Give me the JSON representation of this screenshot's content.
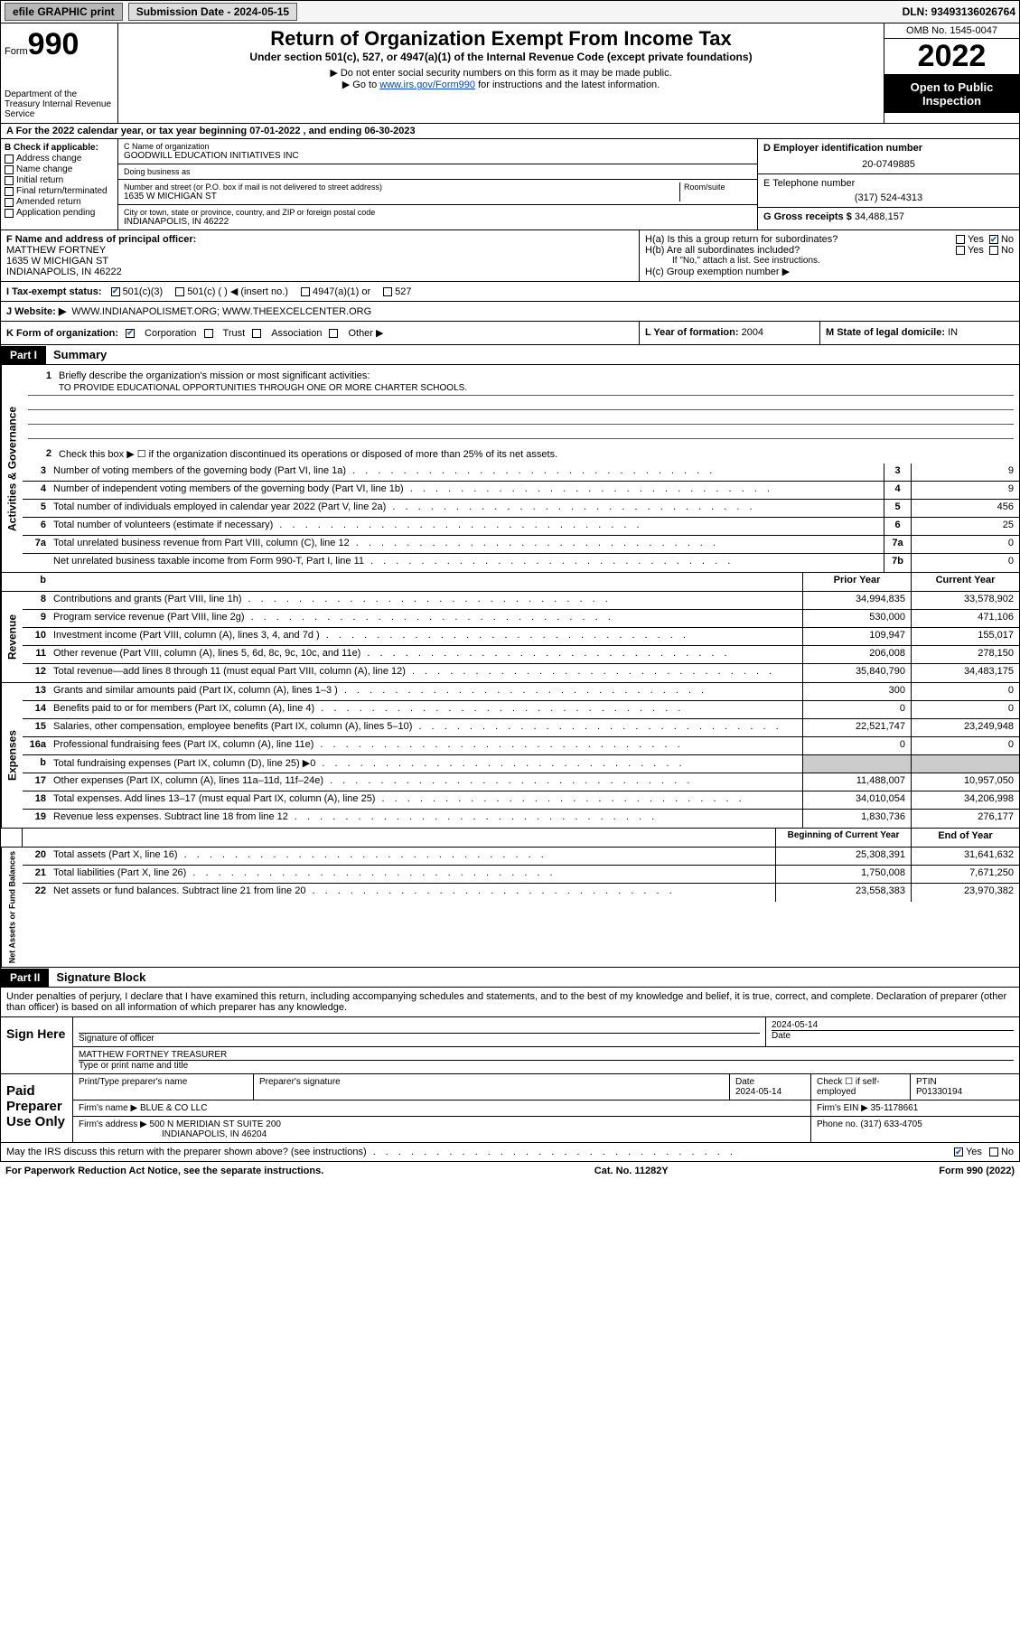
{
  "topbar": {
    "efile": "efile GRAPHIC print",
    "submission_label": "Submission Date - 2024-05-15",
    "dln": "DLN: 93493136026764"
  },
  "header": {
    "form_label": "Form",
    "form_number": "990",
    "dept": "Department of the Treasury\nInternal Revenue Service",
    "title": "Return of Organization Exempt From Income Tax",
    "subtitle": "Under section 501(c), 527, or 4947(a)(1) of the Internal Revenue Code (except private foundations)",
    "note1": "▶ Do not enter social security numbers on this form as it may be made public.",
    "note2_pre": "▶ Go to ",
    "note2_link": "www.irs.gov/Form990",
    "note2_post": " for instructions and the latest information.",
    "omb": "OMB No. 1545-0047",
    "year": "2022",
    "inspection": "Open to Public Inspection"
  },
  "row_a": "A For the 2022 calendar year, or tax year beginning 07-01-2022    , and ending 06-30-2023",
  "section_b": {
    "header": "B Check if applicable:",
    "checks": [
      "Address change",
      "Name change",
      "Initial return",
      "Final return/terminated",
      "Amended return",
      "Application pending"
    ],
    "c_label": "C Name of organization",
    "c_value": "GOODWILL EDUCATION INITIATIVES INC",
    "dba_label": "Doing business as",
    "dba_value": "",
    "addr_label": "Number and street (or P.O. box if mail is not delivered to street address)",
    "addr_value": "1635 W MICHIGAN ST",
    "room_label": "Room/suite",
    "city_label": "City or town, state or province, country, and ZIP or foreign postal code",
    "city_value": "INDIANAPOLIS, IN  46222",
    "d_label": "D Employer identification number",
    "d_value": "20-0749885",
    "e_label": "E Telephone number",
    "e_value": "(317) 524-4313",
    "g_label": "G Gross receipts $",
    "g_value": "34,488,157"
  },
  "fh": {
    "f_label": "F Name and address of principal officer:",
    "f_name": "MATTHEW FORTNEY",
    "f_addr1": "1635 W MICHIGAN ST",
    "f_addr2": "INDIANAPOLIS, IN  46222",
    "ha": "H(a)  Is this a group return for subordinates?",
    "hb": "H(b)  Are all subordinates included?",
    "hb_note": "If \"No,\" attach a list. See instructions.",
    "hc": "H(c)  Group exemption number ▶"
  },
  "tax_status": {
    "label": "I   Tax-exempt status:",
    "opt1": "501(c)(3)",
    "opt2": "501(c) (  ) ◀ (insert no.)",
    "opt3": "4947(a)(1) or",
    "opt4": "527"
  },
  "website": {
    "label": "J   Website: ▶",
    "value": "WWW.INDIANAPOLISMET.ORG; WWW.THEEXCELCENTER.ORG"
  },
  "klm": {
    "k_label": "K Form of organization:",
    "k_opts": [
      "Corporation",
      "Trust",
      "Association",
      "Other ▶"
    ],
    "l_label": "L Year of formation:",
    "l_value": "2004",
    "m_label": "M State of legal domicile:",
    "m_value": "IN"
  },
  "part1": {
    "tag": "Part I",
    "title": "Summary",
    "q1": "Briefly describe the organization's mission or most significant activities:",
    "mission": "TO PROVIDE EDUCATIONAL OPPORTUNITIES THROUGH ONE OR MORE CHARTER SCHOOLS.",
    "q2": "Check this box ▶ ☐  if the organization discontinued its operations or disposed of more than 25% of its net assets.",
    "lines_gov": [
      {
        "n": "3",
        "desc": "Number of voting members of the governing body (Part VI, line 1a)",
        "ref": "3",
        "val": "9"
      },
      {
        "n": "4",
        "desc": "Number of independent voting members of the governing body (Part VI, line 1b)",
        "ref": "4",
        "val": "9"
      },
      {
        "n": "5",
        "desc": "Total number of individuals employed in calendar year 2022 (Part V, line 2a)",
        "ref": "5",
        "val": "456"
      },
      {
        "n": "6",
        "desc": "Total number of volunteers (estimate if necessary)",
        "ref": "6",
        "val": "25"
      },
      {
        "n": "7a",
        "desc": "Total unrelated business revenue from Part VIII, column (C), line 12",
        "ref": "7a",
        "val": "0"
      },
      {
        "n": "",
        "desc": "Net unrelated business taxable income from Form 990-T, Part I, line 11",
        "ref": "7b",
        "val": "0"
      }
    ],
    "col_hdrs": {
      "prior": "Prior Year",
      "current": "Current Year"
    },
    "revenue": [
      {
        "n": "8",
        "desc": "Contributions and grants (Part VIII, line 1h)",
        "p": "34,994,835",
        "c": "33,578,902"
      },
      {
        "n": "9",
        "desc": "Program service revenue (Part VIII, line 2g)",
        "p": "530,000",
        "c": "471,106"
      },
      {
        "n": "10",
        "desc": "Investment income (Part VIII, column (A), lines 3, 4, and 7d )",
        "p": "109,947",
        "c": "155,017"
      },
      {
        "n": "11",
        "desc": "Other revenue (Part VIII, column (A), lines 5, 6d, 8c, 9c, 10c, and 11e)",
        "p": "206,008",
        "c": "278,150"
      },
      {
        "n": "12",
        "desc": "Total revenue—add lines 8 through 11 (must equal Part VIII, column (A), line 12)",
        "p": "35,840,790",
        "c": "34,483,175"
      }
    ],
    "expenses": [
      {
        "n": "13",
        "desc": "Grants and similar amounts paid (Part IX, column (A), lines 1–3 )",
        "p": "300",
        "c": "0"
      },
      {
        "n": "14",
        "desc": "Benefits paid to or for members (Part IX, column (A), line 4)",
        "p": "0",
        "c": "0"
      },
      {
        "n": "15",
        "desc": "Salaries, other compensation, employee benefits (Part IX, column (A), lines 5–10)",
        "p": "22,521,747",
        "c": "23,249,948"
      },
      {
        "n": "16a",
        "desc": "Professional fundraising fees (Part IX, column (A), line 11e)",
        "p": "0",
        "c": "0"
      },
      {
        "n": "b",
        "desc": "Total fundraising expenses (Part IX, column (D), line 25) ▶0",
        "p": "",
        "c": "",
        "shaded": true
      },
      {
        "n": "17",
        "desc": "Other expenses (Part IX, column (A), lines 11a–11d, 11f–24e)",
        "p": "11,488,007",
        "c": "10,957,050"
      },
      {
        "n": "18",
        "desc": "Total expenses. Add lines 13–17 (must equal Part IX, column (A), line 25)",
        "p": "34,010,054",
        "c": "34,206,998"
      },
      {
        "n": "19",
        "desc": "Revenue less expenses. Subtract line 18 from line 12",
        "p": "1,830,736",
        "c": "276,177"
      }
    ],
    "net_hdrs": {
      "begin": "Beginning of Current Year",
      "end": "End of Year"
    },
    "net": [
      {
        "n": "20",
        "desc": "Total assets (Part X, line 16)",
        "p": "25,308,391",
        "c": "31,641,632"
      },
      {
        "n": "21",
        "desc": "Total liabilities (Part X, line 26)",
        "p": "1,750,008",
        "c": "7,671,250"
      },
      {
        "n": "22",
        "desc": "Net assets or fund balances. Subtract line 21 from line 20",
        "p": "23,558,383",
        "c": "23,970,382"
      }
    ]
  },
  "part2": {
    "tag": "Part II",
    "title": "Signature Block",
    "decl": "Under penalties of perjury, I declare that I have examined this return, including accompanying schedules and statements, and to the best of my knowledge and belief, it is true, correct, and complete. Declaration of preparer (other than officer) is based on all information of which preparer has any knowledge.",
    "sign_here": "Sign Here",
    "sig_officer_label": "Signature of officer",
    "sig_date": "2024-05-14",
    "sig_date_label": "Date",
    "sig_name": "MATTHEW FORTNEY  TREASURER",
    "sig_name_label": "Type or print name and title",
    "paid": "Paid Preparer Use Only",
    "prep_name_label": "Print/Type preparer's name",
    "prep_sig_label": "Preparer's signature",
    "prep_date_label": "Date",
    "prep_date": "2024-05-14",
    "prep_check_label": "Check ☐ if self-employed",
    "ptin_label": "PTIN",
    "ptin": "P01330194",
    "firm_name_label": "Firm's name    ▶",
    "firm_name": "BLUE & CO LLC",
    "firm_ein_label": "Firm's EIN ▶",
    "firm_ein": "35-1178661",
    "firm_addr_label": "Firm's address ▶",
    "firm_addr1": "500 N MERIDIAN ST SUITE 200",
    "firm_addr2": "INDIANAPOLIS, IN  46204",
    "firm_phone_label": "Phone no.",
    "firm_phone": "(317) 633-4705",
    "discuss": "May the IRS discuss this return with the preparer shown above? (see instructions)"
  },
  "footer": {
    "left": "For Paperwork Reduction Act Notice, see the separate instructions.",
    "mid": "Cat. No. 11282Y",
    "right": "Form 990 (2022)"
  },
  "colors": {
    "link": "#0044cc",
    "check": "#1a5fb4",
    "missionline": "#3355dd",
    "shaded": "#cccccc"
  }
}
